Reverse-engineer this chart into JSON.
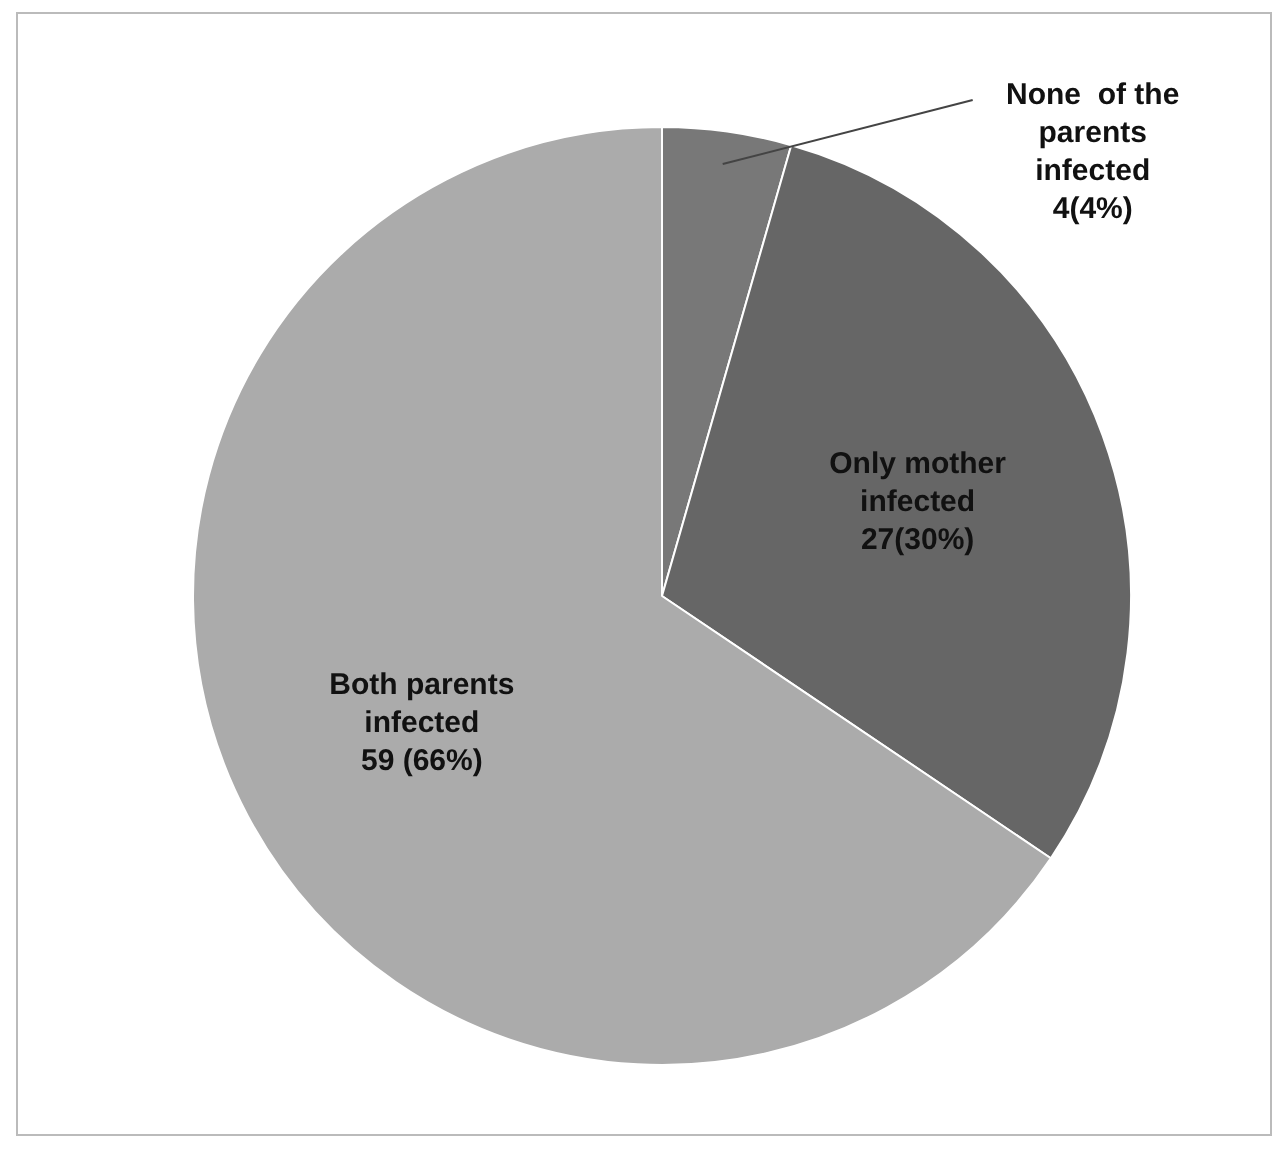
{
  "chart_data": {
    "type": "pie",
    "categories": [
      "None  of the parents infected",
      "Only mother infected",
      "Both parents infected"
    ],
    "values": [
      4,
      27,
      59
    ],
    "colors": [
      "#787878",
      "#666666",
      "#ababab"
    ],
    "value_labels": [
      "4(4%)",
      "27(30%)",
      "59 (66%)"
    ]
  }
}
